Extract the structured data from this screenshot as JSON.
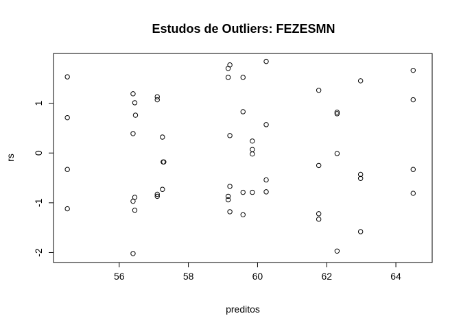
{
  "chart_data": {
    "type": "scatter",
    "title": "Estudos de Outliers:  FEZESMN",
    "xlabel": "preditos",
    "ylabel": "rs",
    "xlim": [
      54.1,
      65.05
    ],
    "ylim": [
      -2.2,
      2.0
    ],
    "xticks": [
      56,
      58,
      60,
      62,
      64
    ],
    "yticks": [
      -2,
      -1,
      0,
      1
    ],
    "grid": false,
    "legend": "none",
    "marker": "open-circle",
    "points": [
      {
        "x": 54.5,
        "y": 1.53
      },
      {
        "x": 54.5,
        "y": 0.71
      },
      {
        "x": 54.5,
        "y": -0.33
      },
      {
        "x": 54.5,
        "y": -1.12
      },
      {
        "x": 56.4,
        "y": 1.19
      },
      {
        "x": 56.45,
        "y": 1.01
      },
      {
        "x": 56.47,
        "y": 0.76
      },
      {
        "x": 56.4,
        "y": 0.39
      },
      {
        "x": 56.45,
        "y": -0.89
      },
      {
        "x": 56.4,
        "y": -0.97
      },
      {
        "x": 56.45,
        "y": -1.15
      },
      {
        "x": 56.4,
        "y": -2.02
      },
      {
        "x": 57.1,
        "y": 1.13
      },
      {
        "x": 57.1,
        "y": 1.07
      },
      {
        "x": 57.25,
        "y": 0.32
      },
      {
        "x": 57.27,
        "y": -0.18
      },
      {
        "x": 57.29,
        "y": -0.18
      },
      {
        "x": 57.25,
        "y": -0.73
      },
      {
        "x": 57.1,
        "y": -0.83
      },
      {
        "x": 57.1,
        "y": -0.87
      },
      {
        "x": 59.2,
        "y": 1.77
      },
      {
        "x": 59.15,
        "y": 1.7
      },
      {
        "x": 59.15,
        "y": 1.52
      },
      {
        "x": 59.2,
        "y": 0.35
      },
      {
        "x": 59.2,
        "y": -0.67
      },
      {
        "x": 59.15,
        "y": -0.87
      },
      {
        "x": 59.15,
        "y": -0.94
      },
      {
        "x": 59.2,
        "y": -1.18
      },
      {
        "x": 59.58,
        "y": 1.52
      },
      {
        "x": 59.58,
        "y": 0.83
      },
      {
        "x": 59.58,
        "y": -0.79
      },
      {
        "x": 59.58,
        "y": -1.24
      },
      {
        "x": 59.85,
        "y": 0.24
      },
      {
        "x": 59.85,
        "y": 0.07
      },
      {
        "x": 59.85,
        "y": -0.02
      },
      {
        "x": 59.85,
        "y": -0.79
      },
      {
        "x": 60.25,
        "y": 1.84
      },
      {
        "x": 60.25,
        "y": 0.57
      },
      {
        "x": 60.25,
        "y": -0.54
      },
      {
        "x": 60.25,
        "y": -0.78
      },
      {
        "x": 61.77,
        "y": 1.26
      },
      {
        "x": 61.77,
        "y": -0.25
      },
      {
        "x": 61.77,
        "y": -1.22
      },
      {
        "x": 61.77,
        "y": -1.33
      },
      {
        "x": 62.3,
        "y": 0.82
      },
      {
        "x": 62.3,
        "y": 0.79
      },
      {
        "x": 62.3,
        "y": -0.01
      },
      {
        "x": 62.3,
        "y": -1.97
      },
      {
        "x": 62.98,
        "y": 1.45
      },
      {
        "x": 62.98,
        "y": -0.43
      },
      {
        "x": 62.98,
        "y": -0.51
      },
      {
        "x": 62.98,
        "y": -1.58
      },
      {
        "x": 64.5,
        "y": 1.66
      },
      {
        "x": 64.5,
        "y": 1.07
      },
      {
        "x": 64.5,
        "y": -0.33
      },
      {
        "x": 64.5,
        "y": -0.81
      }
    ]
  }
}
